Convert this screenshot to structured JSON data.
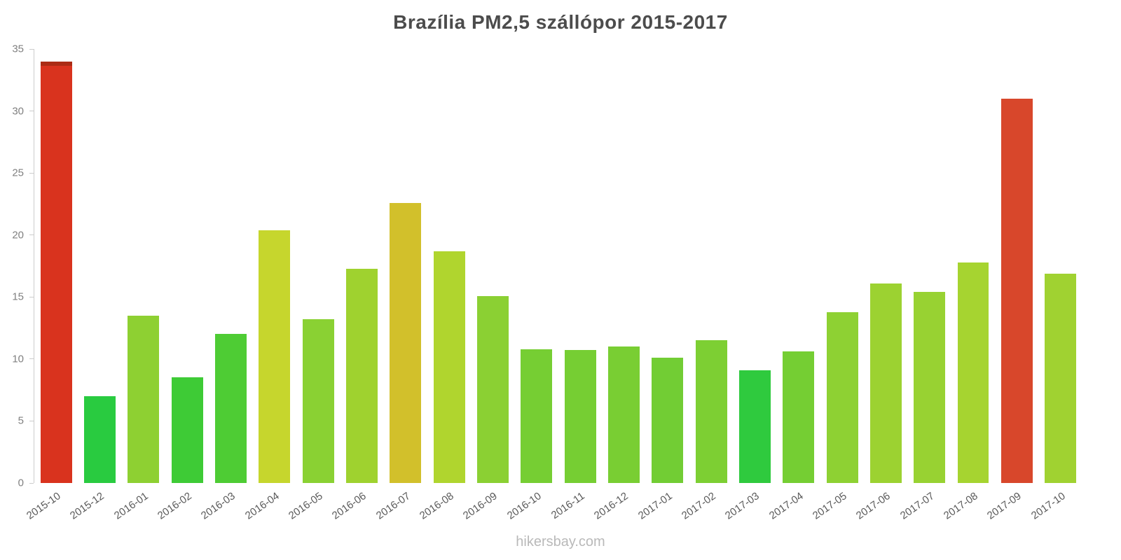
{
  "title": "Brazília PM2,5 szállópor 2015-2017",
  "footer": "hikersbay.com",
  "chart_data": {
    "type": "bar",
    "title": "Brazília PM2,5 szállópor 2015-2017",
    "xlabel": "",
    "ylabel": "",
    "ylim": [
      0,
      35
    ],
    "yticks": [
      0,
      5,
      10,
      15,
      20,
      25,
      30,
      35
    ],
    "grid": false,
    "legend": false,
    "categories": [
      "2015-10",
      "2015-12",
      "2016-01",
      "2016-02",
      "2016-03",
      "2016-04",
      "2016-05",
      "2016-06",
      "2016-07",
      "2016-08",
      "2016-09",
      "2016-10",
      "2016-11",
      "2016-12",
      "2017-01",
      "2017-02",
      "2017-03",
      "2017-04",
      "2017-05",
      "2017-06",
      "2017-07",
      "2017-08",
      "2017-09",
      "2017-10"
    ],
    "values": [
      34,
      7,
      13.5,
      8.5,
      12,
      20.4,
      13.2,
      17.3,
      22.6,
      18.7,
      15.1,
      10.8,
      10.7,
      11,
      10.1,
      11.5,
      9.1,
      10.6,
      13.8,
      16.1,
      15.4,
      17.8,
      31,
      16.9
    ],
    "colors": [
      "#d9331e",
      "#29cb40",
      "#8ed032",
      "#3ecb36",
      "#4ecc34",
      "#c6d62d",
      "#8ad133",
      "#9fd22f",
      "#d2c02b",
      "#b0d52e",
      "#8bd033",
      "#76ce33",
      "#76ce33",
      "#79ce33",
      "#72cd34",
      "#7dcf33",
      "#2fca3e",
      "#75ce33",
      "#8ed133",
      "#9cd231",
      "#98d232",
      "#a6d430",
      "#d8472b",
      "#a0d231"
    ],
    "cap_colors": {
      "0": "#ab2c15"
    }
  }
}
